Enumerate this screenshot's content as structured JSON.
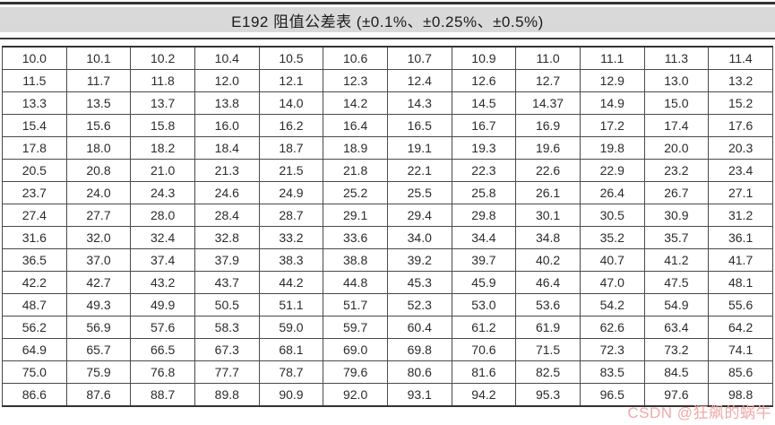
{
  "header": {
    "title": "E192 阻值公差表 (±0.1%、±0.25%、±0.5%)"
  },
  "table": {
    "columns": 12,
    "rows": [
      [
        "10.0",
        "10.1",
        "10.2",
        "10.4",
        "10.5",
        "10.6",
        "10.7",
        "10.9",
        "11.0",
        "11.1",
        "11.3",
        "11.4"
      ],
      [
        "11.5",
        "11.7",
        "11.8",
        "12.0",
        "12.1",
        "12.3",
        "12.4",
        "12.6",
        "12.7",
        "12.9",
        "13.0",
        "13.2"
      ],
      [
        "13.3",
        "13.5",
        "13.7",
        "13.8",
        "14.0",
        "14.2",
        "14.3",
        "14.5",
        "14.37",
        "14.9",
        "15.0",
        "15.2"
      ],
      [
        "15.4",
        "15.6",
        "15.8",
        "16.0",
        "16.2",
        "16.4",
        "16.5",
        "16.7",
        "16.9",
        "17.2",
        "17.4",
        "17.6"
      ],
      [
        "17.8",
        "18.0",
        "18.2",
        "18.4",
        "18.7",
        "18.9",
        "19.1",
        "19.3",
        "19.6",
        "19.8",
        "20.0",
        "20.3"
      ],
      [
        "20.5",
        "20.8",
        "21.0",
        "21.3",
        "21.5",
        "21.8",
        "22.1",
        "22.3",
        "22.6",
        "22.9",
        "23.2",
        "23.4"
      ],
      [
        "23.7",
        "24.0",
        "24.3",
        "24.6",
        "24.9",
        "25.2",
        "25.5",
        "25.8",
        "26.1",
        "26.4",
        "26.7",
        "27.1"
      ],
      [
        "27.4",
        "27.7",
        "28.0",
        "28.4",
        "28.7",
        "29.1",
        "29.4",
        "29.8",
        "30.1",
        "30.5",
        "30.9",
        "31.2"
      ],
      [
        "31.6",
        "32.0",
        "32.4",
        "32.8",
        "33.2",
        "33.6",
        "34.0",
        "34.4",
        "34.8",
        "35.2",
        "35.7",
        "36.1"
      ],
      [
        "36.5",
        "37.0",
        "37.4",
        "37.9",
        "38.3",
        "38.8",
        "39.2",
        "39.7",
        "40.2",
        "40.7",
        "41.2",
        "41.7"
      ],
      [
        "42.2",
        "42.7",
        "43.2",
        "43.7",
        "44.2",
        "44.8",
        "45.3",
        "45.9",
        "46.4",
        "47.0",
        "47.5",
        "48.1"
      ],
      [
        "48.7",
        "49.3",
        "49.9",
        "50.5",
        "51.1",
        "51.7",
        "52.3",
        "53.0",
        "53.6",
        "54.2",
        "54.9",
        "55.6"
      ],
      [
        "56.2",
        "56.9",
        "57.6",
        "58.3",
        "59.0",
        "59.7",
        "60.4",
        "61.2",
        "61.9",
        "62.6",
        "63.4",
        "64.2"
      ],
      [
        "64.9",
        "65.7",
        "66.5",
        "67.3",
        "68.1",
        "69.0",
        "69.8",
        "70.6",
        "71.5",
        "72.3",
        "73.2",
        "74.1"
      ],
      [
        "75.0",
        "75.9",
        "76.8",
        "77.7",
        "78.7",
        "79.6",
        "80.6",
        "81.6",
        "82.5",
        "83.5",
        "84.5",
        "85.6"
      ],
      [
        "86.6",
        "87.6",
        "88.7",
        "89.8",
        "90.9",
        "92.0",
        "93.1",
        "94.2",
        "95.3",
        "96.5",
        "97.6",
        "98.8"
      ]
    ]
  },
  "watermark": {
    "text": "CSDN @狂飙的蜗牛",
    "color": "#f0a8a8"
  },
  "colors": {
    "header_bg": "#d9d9d9",
    "rule": "#333333",
    "cell_border": "#4a4a4a",
    "text": "#2b2b2b"
  }
}
